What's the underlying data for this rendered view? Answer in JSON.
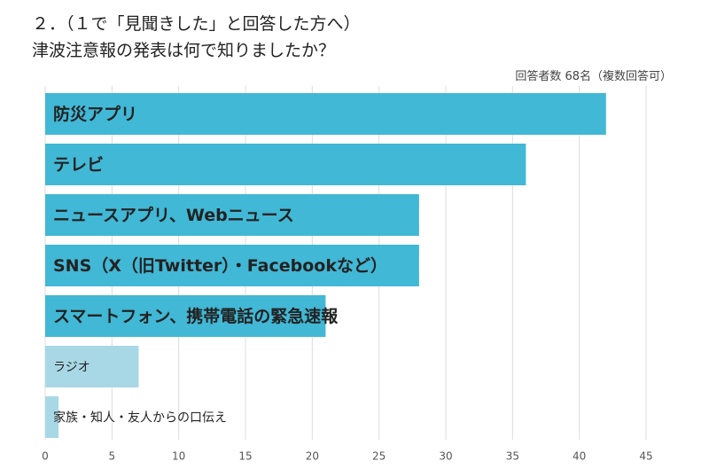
{
  "chart_data": {
    "type": "bar",
    "orientation": "horizontal",
    "title": "２．（１で「見聞きした」と回答した方へ）",
    "subtitle": "津波注意報の発表は何で知りましたか？",
    "note": "回答者数 68名（複数回答可）",
    "categories": [
      "防災アプリ",
      "テレビ",
      "ニュースアプリ、Webニュース",
      "SNS（X（旧Twitter）・Facebookなど）",
      "スマートフォン、携帯電話の緊急速報",
      "ラジオ",
      "家族・知人・友人からの口伝え"
    ],
    "values": [
      42,
      36,
      28,
      28,
      21,
      7,
      1
    ],
    "colors": [
      "#41b8d5",
      "#41b8d5",
      "#41b8d5",
      "#41b8d5",
      "#41b8d5",
      "#a8d8e6",
      "#a8d8e6"
    ],
    "label_bold": [
      true,
      true,
      true,
      true,
      true,
      false,
      false
    ],
    "xlim": [
      0,
      45
    ],
    "xticks": [
      0,
      5,
      10,
      15,
      20,
      25,
      30,
      35,
      40,
      45
    ],
    "grid": true
  }
}
